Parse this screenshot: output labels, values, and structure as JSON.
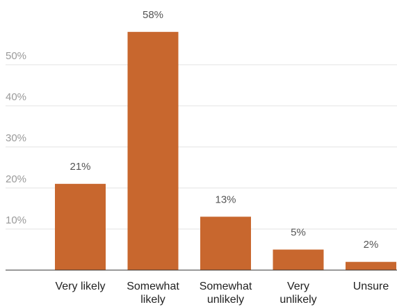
{
  "colors": {
    "bar": "#C8672E",
    "grid": "#e3e3e3",
    "tick_text": "#9a9a9a",
    "data_label_text": "#555555",
    "category_text": "#222222",
    "baseline": "#333333"
  },
  "chart_data": {
    "type": "bar",
    "categories": [
      [
        "Very likely"
      ],
      [
        "Somewhat",
        "likely"
      ],
      [
        "Somewhat",
        "unlikely"
      ],
      [
        "Very",
        "unlikely"
      ],
      [
        "Unsure"
      ]
    ],
    "values": [
      21,
      58,
      13,
      5,
      2
    ],
    "data_labels": [
      "21%",
      "58%",
      "13%",
      "5%",
      "2%"
    ],
    "yticks": [
      {
        "value": 10,
        "label": "10%"
      },
      {
        "value": 20,
        "label": "20%"
      },
      {
        "value": 30,
        "label": "30%"
      },
      {
        "value": 40,
        "label": "40%"
      },
      {
        "value": 50,
        "label": "50%"
      }
    ],
    "ylim": [
      0,
      60
    ],
    "grid": true,
    "title": "",
    "xlabel": "",
    "ylabel": ""
  }
}
